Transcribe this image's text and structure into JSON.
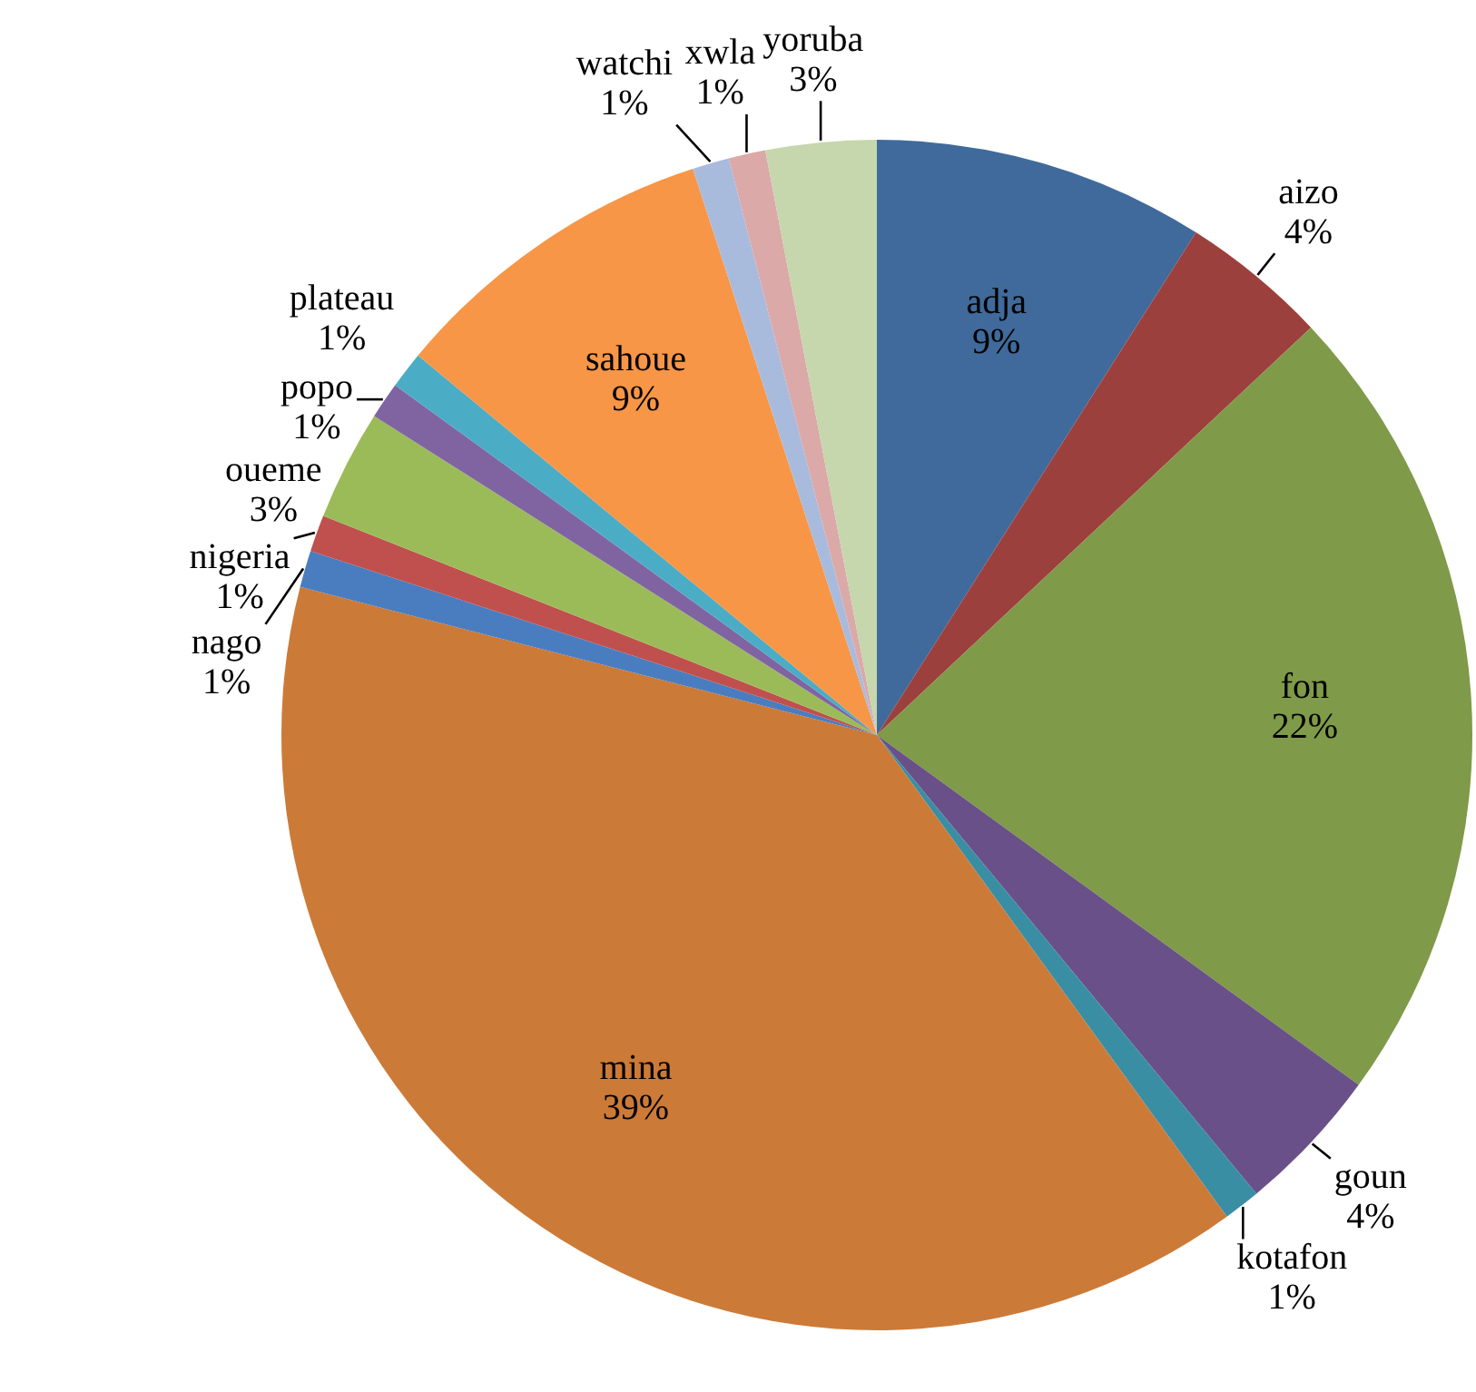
{
  "chart_data": {
    "type": "pie",
    "categories": [
      "adja",
      "aizo",
      "fon",
      "goun",
      "kotafon",
      "mina",
      "nago",
      "nigeria",
      "oueme",
      "popo",
      "plateau",
      "sahoue",
      "watchi",
      "xwla",
      "yoruba"
    ],
    "values": [
      9,
      4,
      22,
      4,
      1,
      39,
      1,
      1,
      3,
      1,
      1,
      9,
      1,
      1,
      3
    ],
    "value_labels": [
      "9%",
      "4%",
      "22%",
      "4%",
      "1%",
      "39%",
      "1%",
      "1%",
      "3%",
      "1%",
      "1%",
      "9%",
      "1%",
      "1%",
      "3%"
    ],
    "colors": [
      "#3f6a9b",
      "#9c403e",
      "#7f9a48",
      "#6a5088",
      "#3a8ea3",
      "#cc7a37",
      "#4a7dbf",
      "#c0504d",
      "#9bbb59",
      "#8064a2",
      "#4bacc6",
      "#f79646",
      "#a9bbdd",
      "#dba9a8",
      "#c6d6ad"
    ],
    "legend": false
  }
}
